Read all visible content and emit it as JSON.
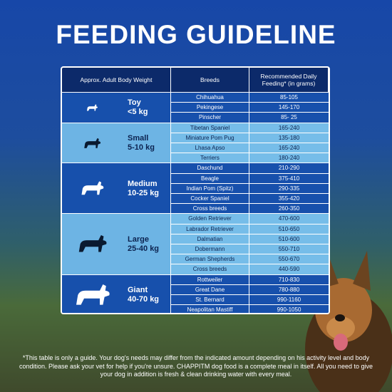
{
  "header": {
    "title": "FEEDING GUIDELINE"
  },
  "table": {
    "columns": [
      "Approx. Adult Body Weight",
      "Breeds",
      "Recommended Daily Feeding* (in grams)"
    ],
    "groups": [
      {
        "size": "Toy",
        "weight": "<5 kg",
        "rows": [
          [
            "Chihuahua",
            "85-105"
          ],
          [
            "Pekingese",
            "145-170"
          ],
          [
            "Pinscher",
            "85- 25"
          ]
        ]
      },
      {
        "size": "Small",
        "weight": "5-10 kg",
        "rows": [
          [
            "Tibetan Spaniel",
            "165-240"
          ],
          [
            "Miniature Pom Pug",
            "135-180"
          ],
          [
            "Lhasa Apso",
            "165-240"
          ],
          [
            "Terriers",
            "180-240"
          ]
        ]
      },
      {
        "size": "Medium",
        "weight": "10-25 kg",
        "rows": [
          [
            "Daschund",
            "210-290"
          ],
          [
            "Beagle",
            "375-410"
          ],
          [
            "Indian Pom (Spitz)",
            "290-335"
          ],
          [
            "Cocker Spaniel",
            "355-420"
          ],
          [
            "Cross breeds",
            "260-350"
          ]
        ]
      },
      {
        "size": "Large",
        "weight": "25-40 kg",
        "rows": [
          [
            "Golden Retriever",
            "470-600"
          ],
          [
            "Labrador Retriever",
            "510-650"
          ],
          [
            "Dalmatian",
            "510-600"
          ],
          [
            "Dobermann",
            "550-710"
          ],
          [
            "German Shepherds",
            "550-670"
          ],
          [
            "Cross breeds",
            "440-590"
          ]
        ]
      },
      {
        "size": "Giant",
        "weight": "40-70 kg",
        "rows": [
          [
            "Rottweiler",
            "710-830"
          ],
          [
            "Great Dane",
            "780-880"
          ],
          [
            "St. Bernard",
            "990-1160"
          ],
          [
            "Neapolitan Mastiff",
            "990-1050"
          ]
        ]
      }
    ]
  },
  "footnote": "*This table is only a guide. Your dog's needs may differ from the indicated amount depending on his activity level and body condition. Please ask your vet for help if you're unsure. CHAPPITM dog food is a complete meal in itself. All you need to give your dog in addition is fresh & clean drinking water with every meal."
}
